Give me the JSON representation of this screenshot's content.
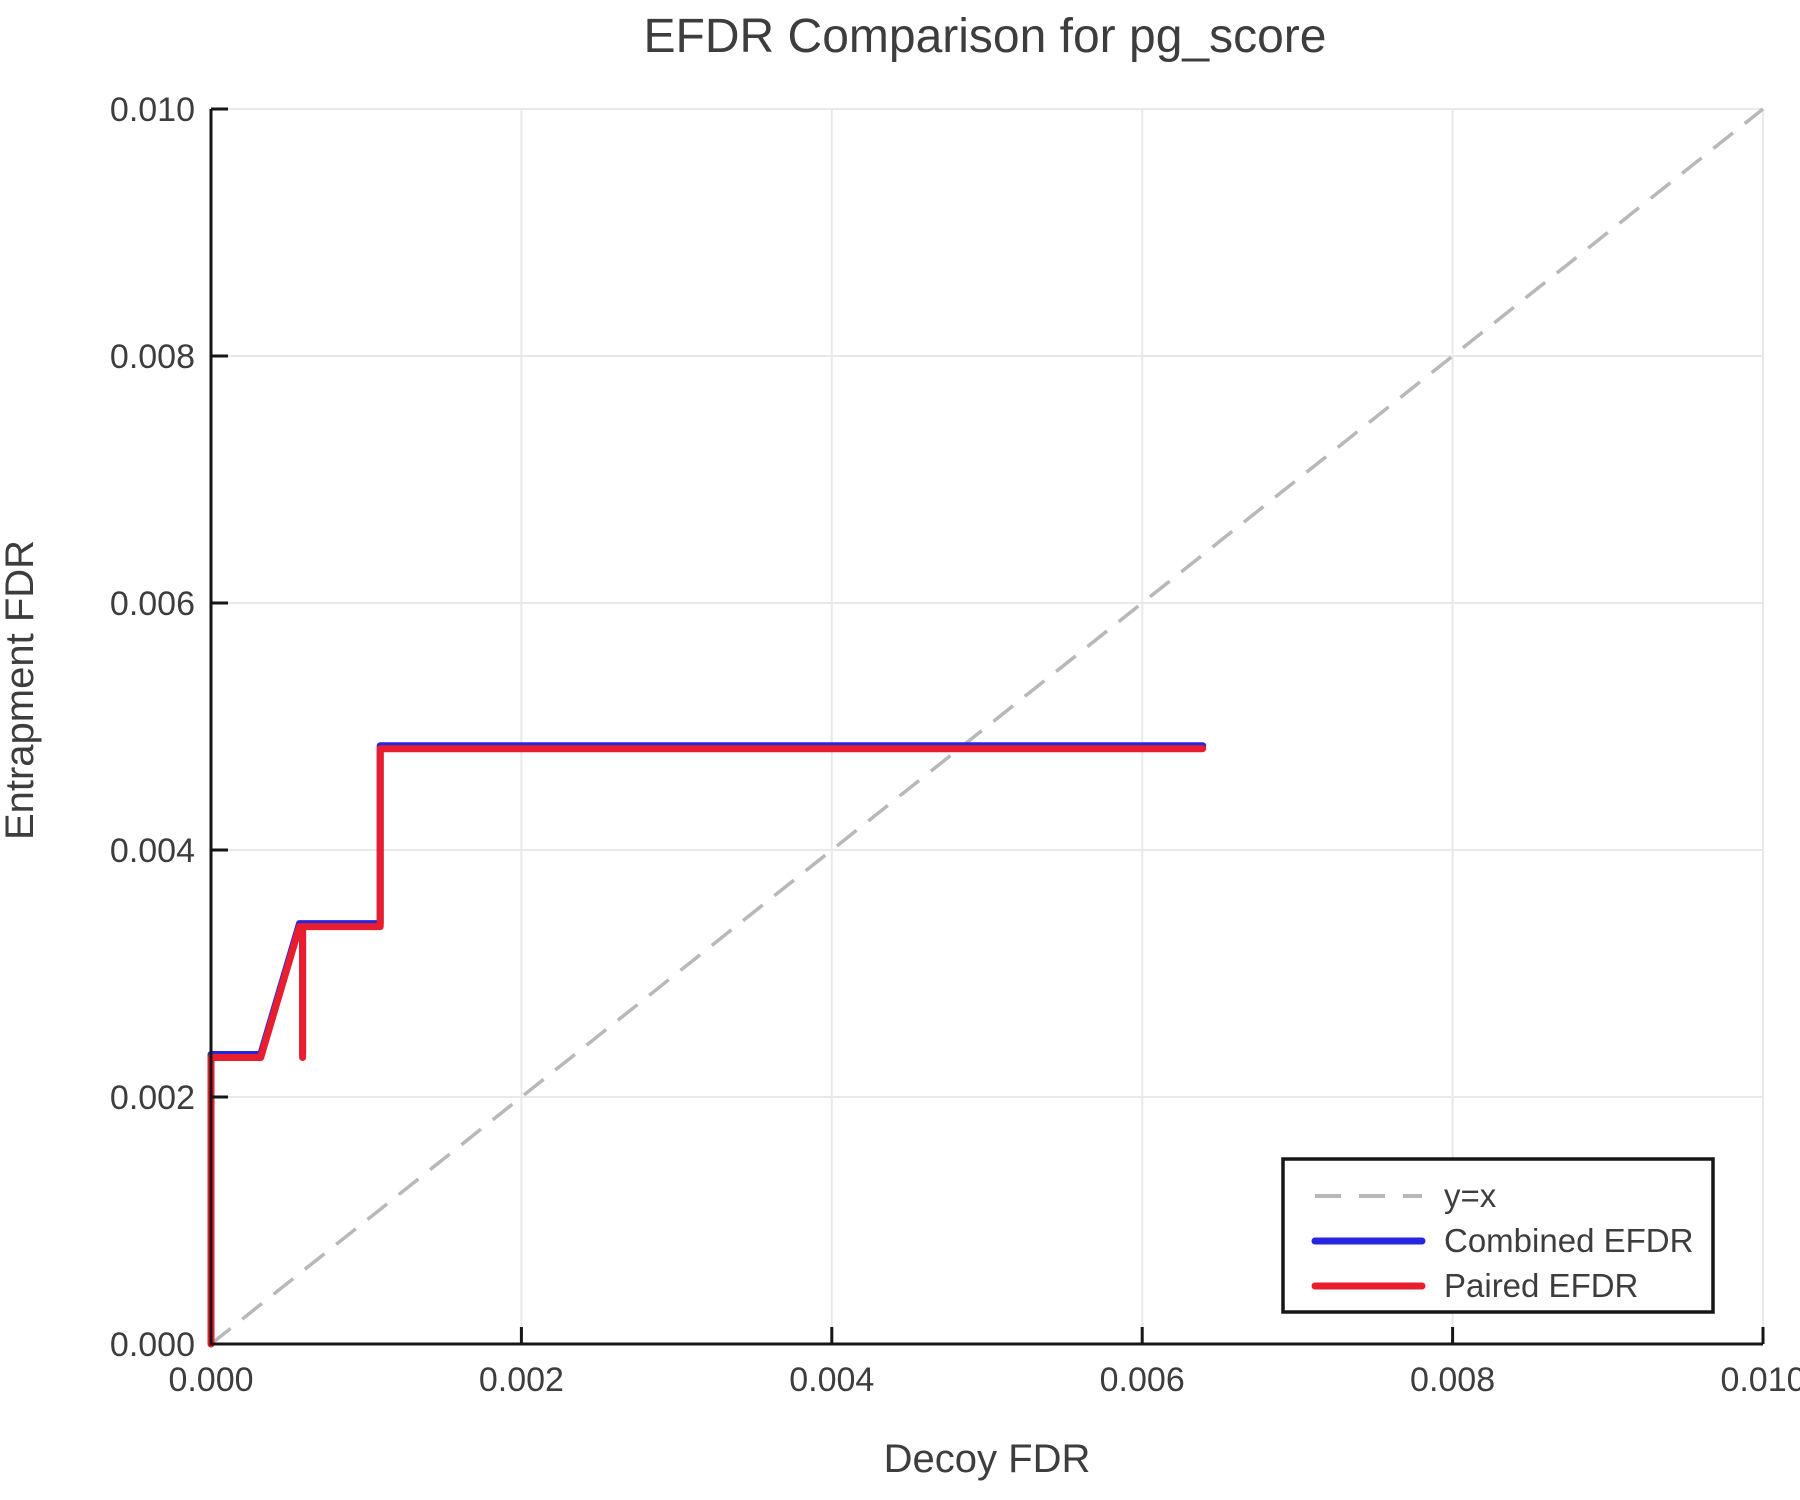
{
  "title": "EFDR Comparison for pg_score",
  "chart_data": {
    "type": "line",
    "title": "EFDR Comparison for pg_score",
    "xlabel": "Decoy FDR",
    "ylabel": "Entrapment FDR",
    "xlim": [
      0.0,
      0.01
    ],
    "ylim": [
      0.0,
      0.01
    ],
    "x_ticks": [
      "0.000",
      "0.002",
      "0.004",
      "0.006",
      "0.008",
      "0.010"
    ],
    "y_ticks": [
      "0.000",
      "0.002",
      "0.004",
      "0.006",
      "0.008",
      "0.010"
    ],
    "grid": true,
    "legend_position": "bottom-right",
    "reference_line": {
      "label": "y=x",
      "style": "dashed",
      "color": "#b8b8b8",
      "from": [
        0.0,
        0.0
      ],
      "to": [
        0.01,
        0.01
      ]
    },
    "series": [
      {
        "name": "Combined EFDR",
        "color": "#2626e0",
        "points": [
          [
            0.0,
            0.0
          ],
          [
            0.0,
            0.00232
          ],
          [
            0.00032,
            0.00232
          ],
          [
            0.00057,
            0.00338
          ],
          [
            0.00059,
            0.00338
          ],
          [
            0.00059,
            0.00232
          ],
          [
            0.00059,
            0.00338
          ],
          [
            0.00109,
            0.00338
          ],
          [
            0.00109,
            0.00482
          ],
          [
            0.00639,
            0.00482
          ]
        ]
      },
      {
        "name": "Paired EFDR",
        "color": "#e81e2f",
        "points": [
          [
            0.0,
            0.0
          ],
          [
            0.0,
            0.00232
          ],
          [
            0.00032,
            0.00232
          ],
          [
            0.00057,
            0.00338
          ],
          [
            0.00059,
            0.00338
          ],
          [
            0.00059,
            0.00232
          ],
          [
            0.00059,
            0.00338
          ],
          [
            0.00109,
            0.00338
          ],
          [
            0.00109,
            0.00482
          ],
          [
            0.00639,
            0.00482
          ]
        ]
      }
    ],
    "annotations": []
  },
  "legend": {
    "entries": [
      {
        "label": "y=x",
        "color": "#b8b8b8",
        "style": "dashed"
      },
      {
        "label": "Combined EFDR",
        "color": "#2626e0",
        "style": "solid"
      },
      {
        "label": "Paired EFDR",
        "color": "#e81e2f",
        "style": "solid"
      }
    ]
  },
  "colors": {
    "text": "#3d3d3d",
    "grid": "#e9e9e9",
    "spine": "#161616",
    "background": "#ffffff"
  }
}
